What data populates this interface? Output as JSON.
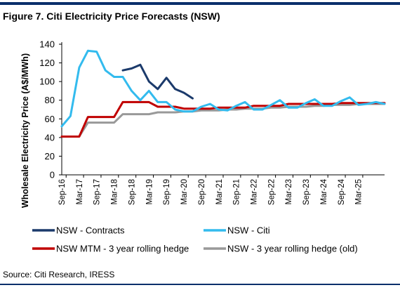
{
  "figure": {
    "title": "Figure 7. Citi Electricity Price Forecasts (NSW)",
    "source": "Source: Citi Research, IRESS"
  },
  "chart_data": {
    "type": "line",
    "title": "Figure 7. Citi Electricity Price Forecasts (NSW)",
    "xlabel": "",
    "ylabel": "Wholesale Electricity Price (A$/MWh)",
    "ylim": [
      0,
      140
    ],
    "yticks": [
      0,
      20,
      40,
      60,
      80,
      100,
      120,
      140
    ],
    "xticks": [
      "Sep-16",
      "Mar-17",
      "Sep-17",
      "Mar-18",
      "Sep-18",
      "Mar-19",
      "Sep-19",
      "Mar-20",
      "Sep-20",
      "Mar-21",
      "Sep-21",
      "Mar-22",
      "Sep-22",
      "Mar-23",
      "Sep-23",
      "Mar-24",
      "Sep-24",
      "Mar-25"
    ],
    "x_range": [
      0,
      37
    ],
    "grid": false,
    "legend_position": "bottom",
    "series": [
      {
        "name": "NSW - Contracts",
        "color": "#1b3a6b",
        "width": 3,
        "x": [
          7,
          8,
          9,
          10,
          11,
          12,
          13,
          14,
          15,
          16
        ],
        "y": [
          112,
          114,
          118,
          100,
          92,
          104,
          92,
          88,
          82,
          null
        ]
      },
      {
        "name": "NSW - Citi",
        "color": "#33bbee",
        "width": 3,
        "x": [
          0,
          1,
          2,
          3,
          4,
          5,
          6,
          7,
          8,
          9,
          10,
          11,
          12,
          13,
          14,
          15,
          16,
          17,
          18,
          19,
          20,
          21,
          22,
          23,
          24,
          25,
          26,
          27,
          28,
          29,
          30,
          31,
          32,
          33,
          34,
          35,
          36,
          37
        ],
        "y": [
          52,
          63,
          115,
          133,
          132,
          112,
          105,
          105,
          90,
          80,
          90,
          78,
          78,
          70,
          68,
          68,
          73,
          76,
          70,
          69,
          74,
          78,
          70,
          70,
          75,
          80,
          72,
          72,
          77,
          81,
          74,
          74,
          79,
          83,
          75,
          76,
          78,
          76
        ]
      },
      {
        "name": "NSW MTM - 3 year rolling hedge",
        "color": "#c00000",
        "width": 3,
        "x": [
          0,
          1,
          2,
          3,
          4,
          5,
          6,
          7,
          8,
          9,
          10,
          11,
          12,
          13,
          14,
          15,
          16,
          17,
          18,
          19,
          20,
          21,
          22,
          23,
          24,
          25,
          26,
          27,
          28,
          29,
          30,
          31,
          32,
          33,
          34,
          35,
          36,
          37
        ],
        "y": [
          41,
          41,
          41,
          62,
          62,
          62,
          62,
          78,
          78,
          78,
          78,
          73,
          73,
          73,
          71,
          71,
          71,
          71,
          72,
          72,
          72,
          72,
          74,
          74,
          74,
          74,
          76,
          76,
          76,
          76,
          76,
          76,
          77,
          77,
          77,
          77,
          77,
          77
        ]
      },
      {
        "name": "NSW - 3 year rolling hedge (old)",
        "color": "#999999",
        "width": 3,
        "x": [
          0,
          1,
          2,
          3,
          4,
          5,
          6,
          7,
          8,
          9,
          10,
          11,
          12,
          13,
          14,
          15,
          16,
          17,
          18,
          19,
          20,
          21,
          22,
          23,
          24,
          25,
          26,
          27,
          28,
          29,
          30,
          31,
          32,
          33,
          34,
          35,
          36,
          37
        ],
        "y": [
          41,
          41,
          41,
          56,
          56,
          56,
          56,
          65,
          65,
          65,
          65,
          67,
          67,
          67,
          68,
          68,
          69,
          69,
          69,
          70,
          70,
          71,
          71,
          71,
          72,
          72,
          73,
          73,
          73,
          74,
          74,
          75,
          75,
          75,
          76,
          76,
          76,
          76
        ]
      }
    ]
  }
}
